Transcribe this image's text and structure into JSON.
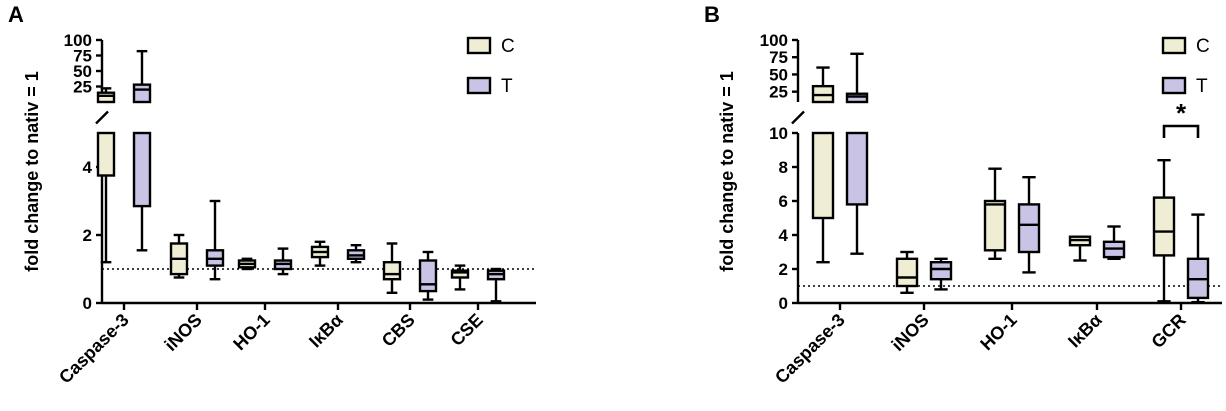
{
  "colors": {
    "C": "#efedd3",
    "T": "#c9c4e6",
    "stroke": "#000000"
  },
  "chart_data": [
    {
      "panel": "A",
      "type": "box",
      "ylabel": "fold change to nativ = 1",
      "reference_line": 1,
      "y_axis": {
        "broken": true,
        "lower": {
          "range": [
            0,
            5
          ],
          "ticks": [
            "0",
            "2",
            "4"
          ]
        },
        "upper": {
          "range": [
            0,
            100
          ],
          "ticks": [
            "25",
            "50",
            "75",
            "100"
          ]
        }
      },
      "legend": {
        "entries": [
          "C",
          "T"
        ],
        "position": "top-right"
      },
      "categories": [
        "Caspase-3",
        "iNOS",
        "HO-1",
        "IκBα",
        "CBS",
        "CSE"
      ],
      "series": [
        {
          "name": "C",
          "boxes": [
            {
              "min": 1.2,
              "q1": 3.75,
              "median": 10,
              "q3": 15,
              "max": 22
            },
            {
              "min": 0.75,
              "q1": 0.85,
              "median": 1.3,
              "q3": 1.75,
              "max": 2.0
            },
            {
              "min": 1.0,
              "q1": 1.05,
              "median": 1.15,
              "q3": 1.25,
              "max": 1.3
            },
            {
              "min": 1.1,
              "q1": 1.35,
              "median": 1.5,
              "q3": 1.65,
              "max": 1.8
            },
            {
              "min": 0.3,
              "q1": 0.7,
              "median": 0.85,
              "q3": 1.2,
              "max": 1.75
            },
            {
              "min": 0.4,
              "q1": 0.75,
              "median": 0.9,
              "q3": 0.95,
              "max": 1.1
            }
          ]
        },
        {
          "name": "T",
          "boxes": [
            {
              "min": 1.55,
              "q1": 2.85,
              "median": 20,
              "q3": 28,
              "max": 82
            },
            {
              "min": 0.7,
              "q1": 1.1,
              "median": 1.3,
              "q3": 1.55,
              "max": 3.0
            },
            {
              "min": 0.85,
              "q1": 1.0,
              "median": 1.15,
              "q3": 1.25,
              "max": 1.6
            },
            {
              "min": 1.2,
              "q1": 1.3,
              "median": 1.4,
              "q3": 1.55,
              "max": 1.7
            },
            {
              "min": 0.1,
              "q1": 0.35,
              "median": 0.55,
              "q3": 1.25,
              "max": 1.5
            },
            {
              "min": 0.05,
              "q1": 0.7,
              "median": 0.85,
              "q3": 0.95,
              "max": 1.0
            }
          ]
        }
      ]
    },
    {
      "panel": "B",
      "type": "box",
      "ylabel": "fold change to nativ = 1",
      "reference_line": 1,
      "y_axis": {
        "broken": true,
        "lower": {
          "range": [
            0,
            10
          ],
          "ticks": [
            "0",
            "2",
            "4",
            "6",
            "8",
            "10"
          ]
        },
        "upper": {
          "range": [
            10,
            100
          ],
          "ticks": [
            "25",
            "50",
            "75",
            "100"
          ]
        }
      },
      "legend": {
        "entries": [
          "C",
          "T"
        ],
        "position": "top-right"
      },
      "categories": [
        "Caspase-3",
        "iNOS",
        "HO-1",
        "IκBα",
        "GCR"
      ],
      "significance": {
        "category": "GCR",
        "label": "*"
      },
      "series": [
        {
          "name": "C",
          "boxes": [
            {
              "min": 2.4,
              "q1": 5.0,
              "median": 20,
              "q3": 33,
              "max": 60
            },
            {
              "min": 0.6,
              "q1": 1.0,
              "median": 1.5,
              "q3": 2.6,
              "max": 3.0
            },
            {
              "min": 2.6,
              "q1": 3.1,
              "median": 5.8,
              "q3": 6.0,
              "max": 7.9
            },
            {
              "min": 2.5,
              "q1": 3.4,
              "median": 3.7,
              "q3": 3.9,
              "max": 3.9
            },
            {
              "min": 0.1,
              "q1": 2.8,
              "median": 4.2,
              "q3": 6.2,
              "max": 8.4
            }
          ]
        },
        {
          "name": "T",
          "boxes": [
            {
              "min": 2.9,
              "q1": 5.8,
              "median": 18,
              "q3": 22,
              "max": 80
            },
            {
              "min": 0.8,
              "q1": 1.4,
              "median": 2.0,
              "q3": 2.4,
              "max": 2.6
            },
            {
              "min": 1.8,
              "q1": 3.0,
              "median": 4.6,
              "q3": 5.8,
              "max": 7.4
            },
            {
              "min": 2.6,
              "q1": 2.7,
              "median": 3.2,
              "q3": 3.6,
              "max": 4.5
            },
            {
              "min": 0.05,
              "q1": 0.3,
              "median": 1.4,
              "q3": 2.6,
              "max": 5.2
            }
          ]
        }
      ]
    }
  ]
}
